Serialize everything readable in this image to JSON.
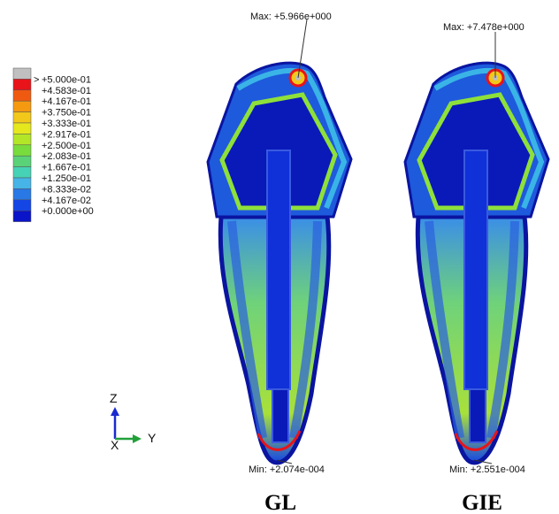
{
  "legend": {
    "over": ">",
    "labels": [
      "+5.000e-01",
      "+4.583e-01",
      "+4.167e-01",
      "+3.750e-01",
      "+3.333e-01",
      "+2.917e-01",
      "+2.500e-01",
      "+2.083e-01",
      "+1.667e-01",
      "+1.250e-01",
      "+8.333e-02",
      "+4.167e-02",
      "+0.000e+00"
    ],
    "colors": [
      "#c0c0c0",
      "#e8141a",
      "#f05a10",
      "#f59a10",
      "#f2c81a",
      "#e6e81e",
      "#b4e628",
      "#78dc3c",
      "#5ad278",
      "#46d2b4",
      "#46b4e6",
      "#2878e6",
      "#1446e6",
      "#0a14c8"
    ]
  },
  "panels": [
    {
      "label": "GL",
      "max": "Max: +5.966e+000",
      "min": "Min: +2.074e-004"
    },
    {
      "label": "GIE",
      "max": "Max: +7.478e+000",
      "min": "Min: +2.551e-004"
    }
  ],
  "axes": {
    "z": "Z",
    "y": "Y",
    "x": "X"
  }
}
